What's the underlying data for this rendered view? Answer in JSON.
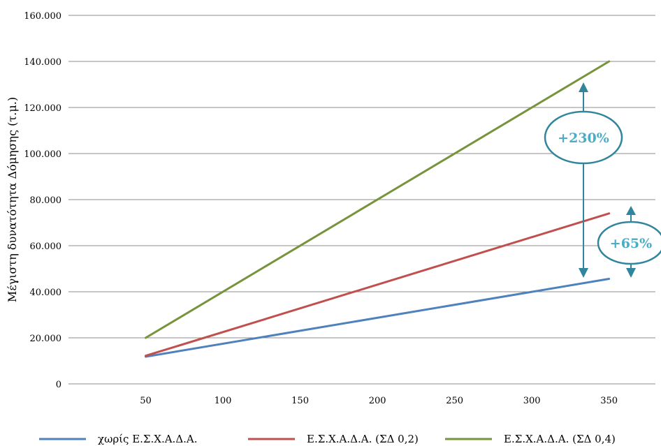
{
  "chart_data": {
    "type": "line",
    "title": "",
    "xlabel": "",
    "ylabel": "Μέγιστη δυνατότητα Δόμησης  (τ.μ.)",
    "x": [
      50,
      350
    ],
    "x_ticks": [
      "50",
      "100",
      "150",
      "200",
      "250",
      "300",
      "350"
    ],
    "y_ticks": [
      "0",
      "20.000",
      "40.000",
      "60.000",
      "80.000",
      "100.000",
      "120.000",
      "140.000",
      "160.000"
    ],
    "xlim": [
      0,
      380
    ],
    "ylim": [
      0,
      160000
    ],
    "grid": "horizontal",
    "legend_position": "bottom",
    "series": [
      {
        "name": "χωρίς Ε.Σ.Χ.Α.Δ.Α.",
        "color": "#4f81bd",
        "values": [
          11800,
          45600
        ]
      },
      {
        "name": "Ε.Σ.Χ.Α.Δ.Α. (ΣΔ 0,2)",
        "color": "#c0504d",
        "values": [
          12200,
          74000
        ]
      },
      {
        "name": "Ε.Σ.Χ.Α.Δ.Α. (ΣΔ 0,4)",
        "color": "#77933c",
        "values": [
          20000,
          140000
        ]
      }
    ],
    "annotations": [
      {
        "text": "+230%",
        "color": "#4bacc6"
      },
      {
        "text": "+65%",
        "color": "#4bacc6"
      }
    ]
  }
}
